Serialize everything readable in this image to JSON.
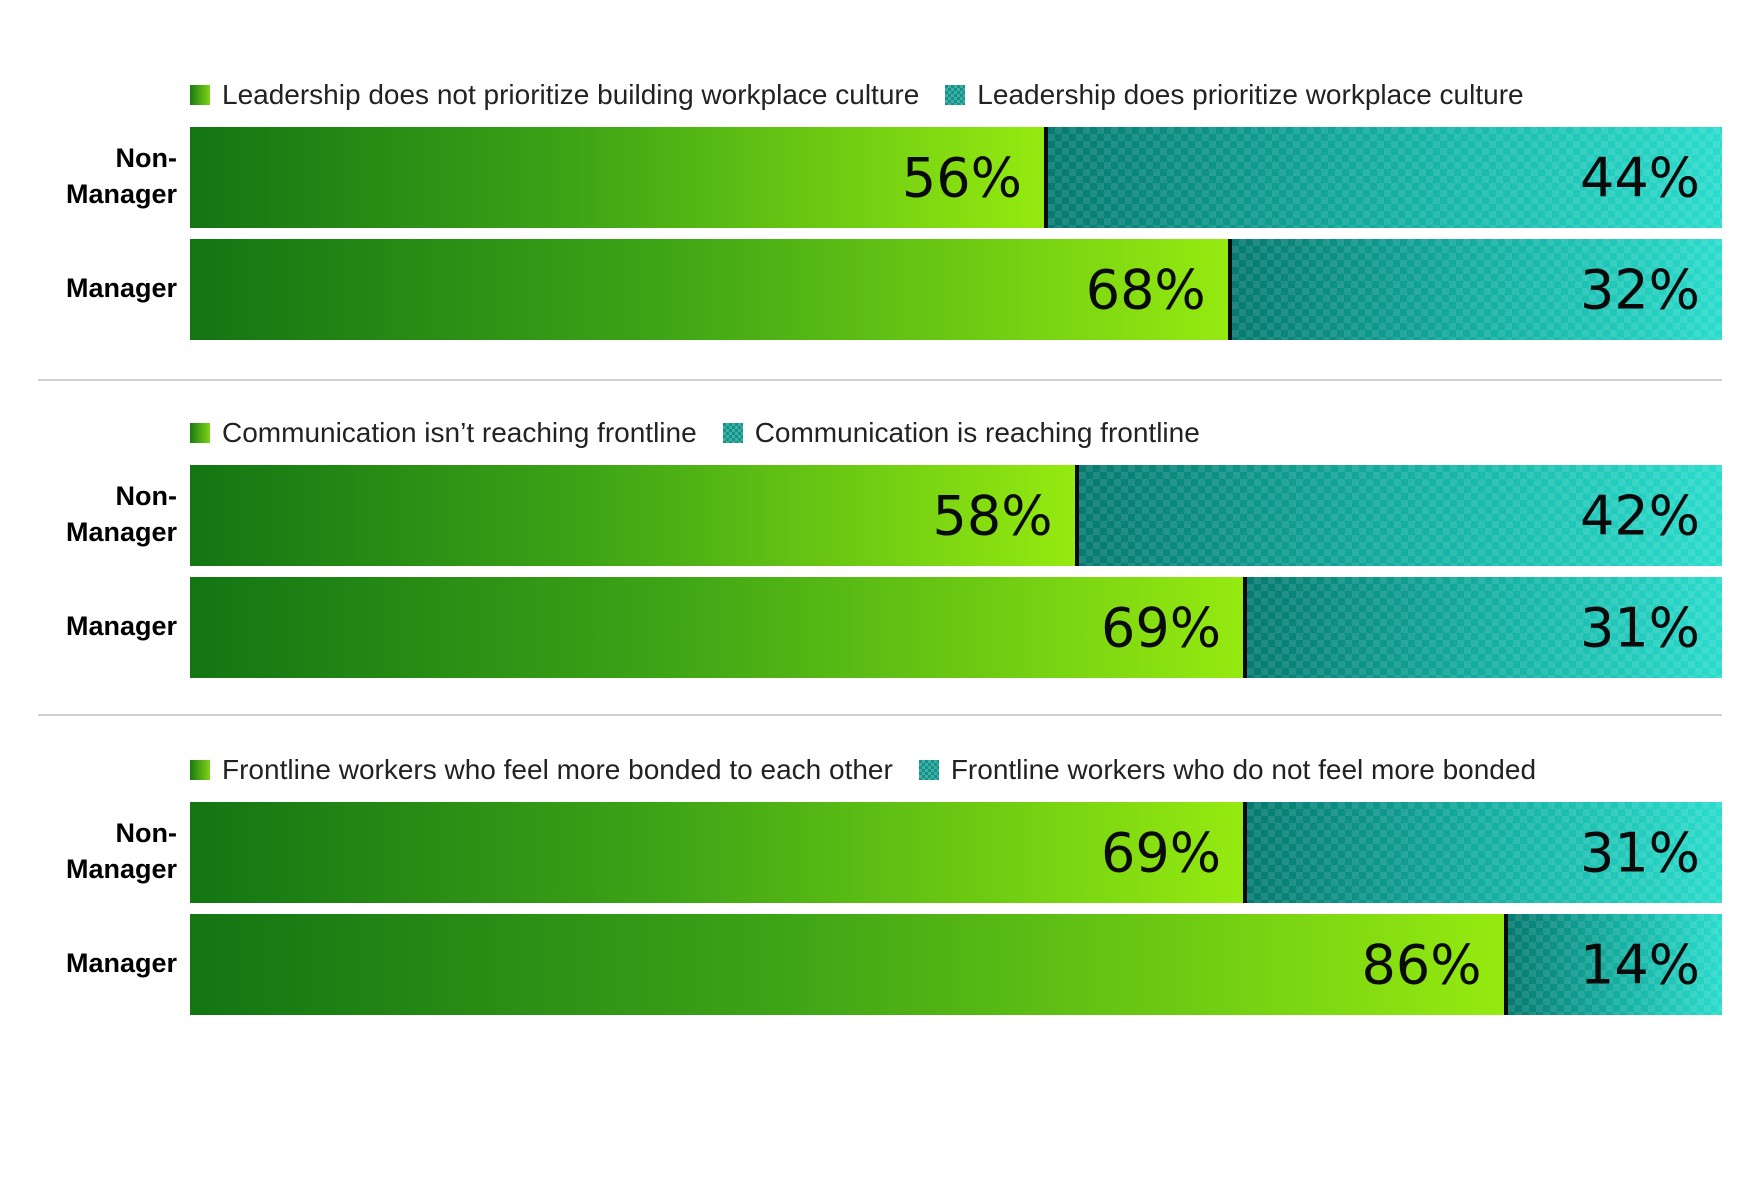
{
  "colors": {
    "green_start": "#137513",
    "green_end": "#95ea10",
    "teal_start": "#067a70",
    "teal_end": "#2bdccc"
  },
  "chart_data": [
    {
      "type": "bar",
      "orientation": "horizontal",
      "stacked": true,
      "categories": [
        "Non-\nManager",
        "Manager"
      ],
      "series": [
        {
          "name": "Leadership does not prioritize building workplace culture",
          "values": [
            56,
            68
          ],
          "labels": [
            "56%",
            "68%"
          ]
        },
        {
          "name": "Leadership does prioritize workplace culture",
          "values": [
            44,
            32
          ],
          "labels": [
            "44%",
            "32%"
          ]
        }
      ],
      "legend_position": "top"
    },
    {
      "type": "bar",
      "orientation": "horizontal",
      "stacked": true,
      "categories": [
        "Non-\nManager",
        "Manager"
      ],
      "series": [
        {
          "name": "Communication isn’t reaching frontline",
          "values": [
            58,
            69
          ],
          "labels": [
            "58%",
            "69%"
          ]
        },
        {
          "name": "Communication is reaching frontline",
          "values": [
            42,
            31
          ],
          "labels": [
            "42%",
            "31%"
          ]
        }
      ],
      "legend_position": "top"
    },
    {
      "type": "bar",
      "orientation": "horizontal",
      "stacked": true,
      "categories": [
        "Non-\nManager",
        "Manager"
      ],
      "series": [
        {
          "name": "Frontline workers who feel more bonded to each other",
          "values": [
            69,
            86
          ],
          "labels": [
            "69%",
            "86%"
          ]
        },
        {
          "name": "Frontline workers who do not feel more bonded",
          "values": [
            31,
            14
          ],
          "labels": [
            "31%",
            "14%"
          ]
        }
      ],
      "legend_position": "top"
    }
  ]
}
